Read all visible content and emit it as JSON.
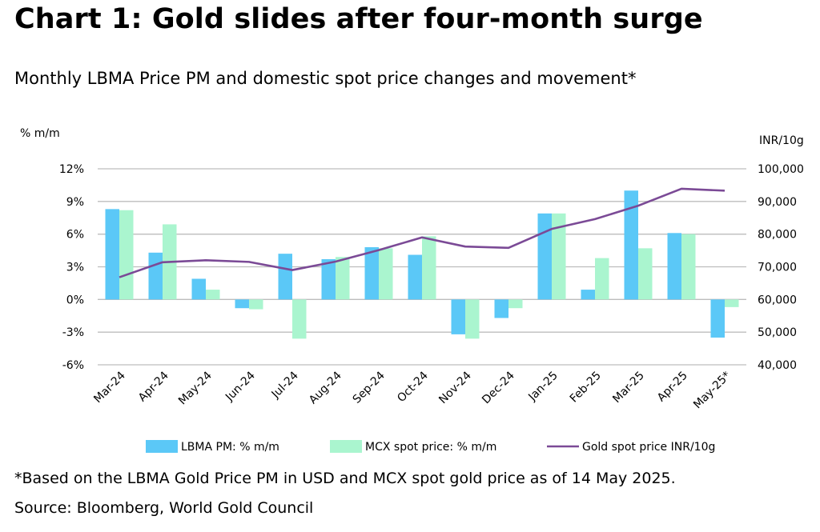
{
  "title": "Chart 1: Gold slides after four-month surge",
  "subtitle": "Monthly LBMA Price PM and domestic spot price changes and movement*",
  "footnote": "*Based on the LBMA Gold Price PM in USD and MCX spot gold price as of 14 May 2025.",
  "source": "Source: Bloomberg, World Gold Council",
  "chart_data": {
    "type": "bar",
    "categories": [
      "Mar-24",
      "Apr-24",
      "May-24",
      "Jun-24",
      "Jul-24",
      "Aug-24",
      "Sep-24",
      "Oct-24",
      "Nov-24",
      "Dec-24",
      "Jan-25",
      "Feb-25",
      "Mar-25",
      "Apr-25",
      "May-25*"
    ],
    "ylabel_left": "% m/m",
    "ylabel_right": "INR/10g",
    "ylim_left": [
      -6,
      12
    ],
    "ylim_right": [
      40000,
      100000
    ],
    "yticks_left": [
      "12%",
      "9%",
      "6%",
      "3%",
      "0%",
      "-3%",
      "-6%"
    ],
    "yticks_right": [
      "100,000",
      "90,000",
      "80,000",
      "70,000",
      "60,000",
      "50,000",
      "40,000"
    ],
    "grid": true,
    "legend_position": "bottom",
    "series": [
      {
        "name": "LBMA PM: % m/m",
        "type": "bar",
        "axis": "left",
        "color": "#5BC8F7",
        "values": [
          8.3,
          4.3,
          1.9,
          -0.8,
          4.2,
          3.7,
          4.8,
          4.1,
          -3.2,
          -1.7,
          7.9,
          0.9,
          10.0,
          6.1,
          -3.5
        ]
      },
      {
        "name": "MCX spot price: % m/m",
        "type": "bar",
        "axis": "left",
        "color": "#AAF5CF",
        "values": [
          8.2,
          6.9,
          0.9,
          -0.9,
          -3.6,
          3.9,
          4.7,
          5.8,
          -3.6,
          -0.8,
          7.9,
          3.8,
          4.7,
          6.0,
          -0.7
        ]
      },
      {
        "name": "Gold spot price INR/10g",
        "type": "line",
        "axis": "right",
        "color": "#7B4A96",
        "values": [
          66800,
          71400,
          72000,
          71500,
          69000,
          71600,
          75100,
          79000,
          76200,
          75800,
          81600,
          84600,
          88700,
          93900,
          93300
        ]
      }
    ]
  }
}
